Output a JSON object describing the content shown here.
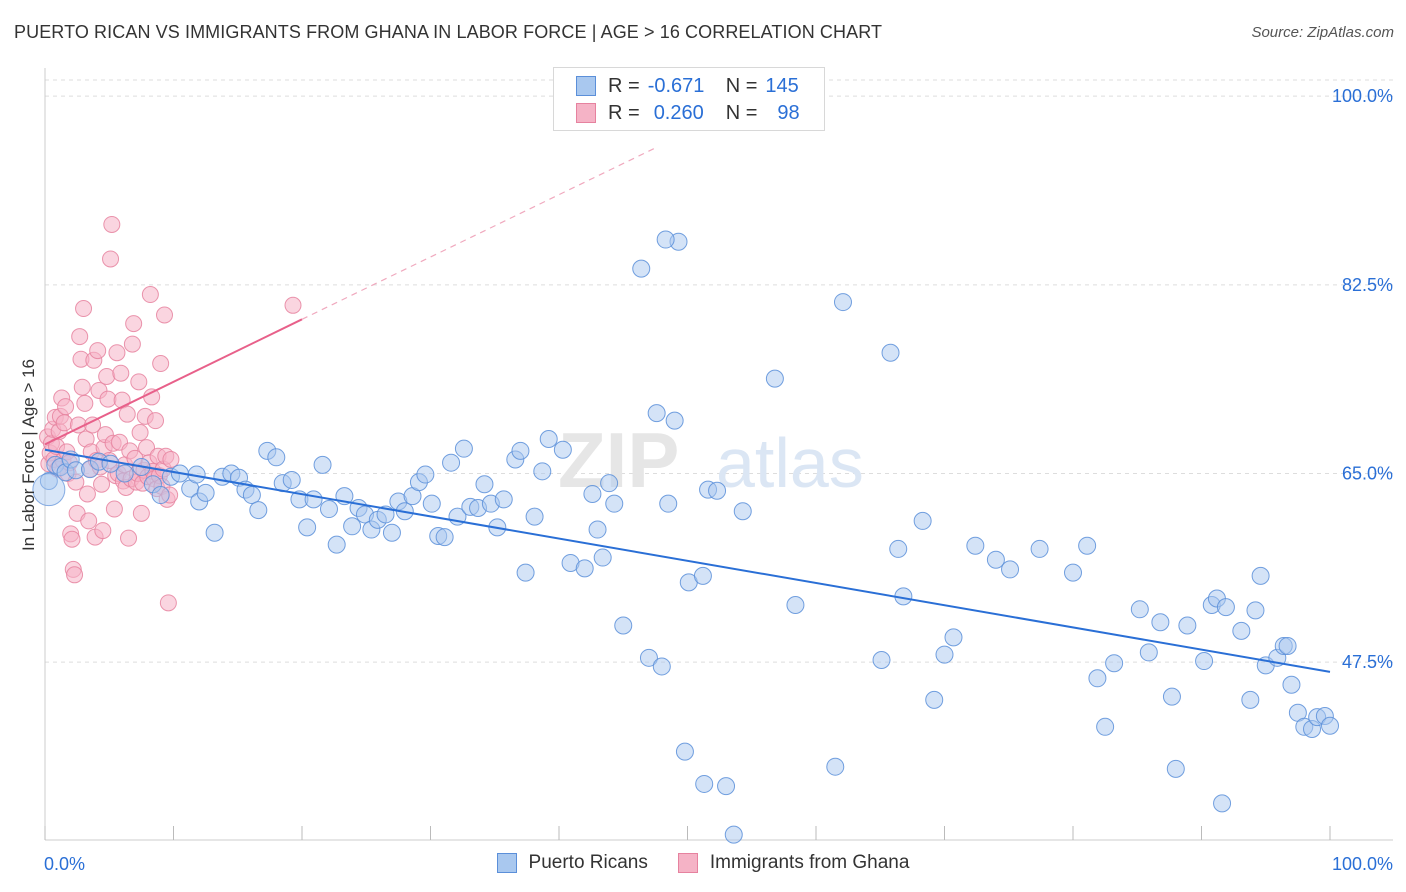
{
  "title": "PUERTO RICAN VS IMMIGRANTS FROM GHANA IN LABOR FORCE | AGE > 16 CORRELATION CHART",
  "source": "Source: ZipAtlas.com",
  "watermark": {
    "zip": "ZIP",
    "atlas": "atlas"
  },
  "legend": {
    "rows": [
      {
        "r_label": "R =",
        "r_value": "-0.671",
        "n_label": "N =",
        "n_value": "145"
      },
      {
        "r_label": "R =",
        "r_value": "0.260",
        "n_label": "N =",
        "n_value": "98"
      }
    ]
  },
  "chart_data": {
    "type": "scatter",
    "title": "PUERTO RICAN VS IMMIGRANTS FROM GHANA IN LABOR FORCE | AGE > 16 CORRELATION CHART",
    "xlabel": "",
    "ylabel": "In Labor Force | Age > 16",
    "xlim": [
      0,
      100
    ],
    "ylim": [
      31.0,
      101.5
    ],
    "x_tick_labels": [
      "0.0%",
      "100.0%"
    ],
    "y_ticks": [
      47.5,
      65.0,
      82.5,
      100.0
    ],
    "y_tick_labels": [
      "47.5%",
      "65.0%",
      "82.5%",
      "100.0%"
    ],
    "grid": true,
    "legend_position": "top-center",
    "colors": {
      "blue_fill": "#a9c8ef",
      "blue_stroke": "#5b8fd9",
      "blue_line": "#2a6fd6",
      "pink_fill": "#f5b3c6",
      "pink_stroke": "#e6829f",
      "pink_line": "#e8608a"
    },
    "series": [
      {
        "name": "Puerto Ricans",
        "color": "#5b8fd9",
        "trend": {
          "x0": 0,
          "y0": 67.2,
          "x1": 100,
          "y1": 46.6
        },
        "points": [
          [
            0.3,
            64.3
          ],
          [
            0.8,
            65.8
          ],
          [
            1.2,
            65.6
          ],
          [
            1.6,
            65.1
          ],
          [
            2.0,
            66.3
          ],
          [
            2.4,
            65.3
          ],
          [
            3.5,
            65.4
          ],
          [
            4.2,
            66.1
          ],
          [
            5.1,
            65.9
          ],
          [
            6.2,
            65.0
          ],
          [
            7.5,
            65.6
          ],
          [
            8.4,
            64.0
          ],
          [
            9.0,
            63.0
          ],
          [
            9.8,
            64.7
          ],
          [
            10.5,
            65.0
          ],
          [
            11.3,
            63.6
          ],
          [
            11.8,
            64.9
          ],
          [
            12.0,
            62.4
          ],
          [
            12.5,
            63.2
          ],
          [
            13.2,
            59.5
          ],
          [
            13.8,
            64.7
          ],
          [
            14.5,
            65.0
          ],
          [
            15.1,
            64.6
          ],
          [
            15.6,
            63.5
          ],
          [
            16.1,
            63.0
          ],
          [
            16.6,
            61.6
          ],
          [
            17.3,
            67.1
          ],
          [
            18.0,
            66.5
          ],
          [
            18.5,
            64.1
          ],
          [
            19.2,
            64.4
          ],
          [
            19.8,
            62.6
          ],
          [
            20.4,
            60.0
          ],
          [
            20.9,
            62.6
          ],
          [
            21.6,
            65.8
          ],
          [
            22.1,
            61.7
          ],
          [
            22.7,
            58.4
          ],
          [
            23.3,
            62.9
          ],
          [
            23.9,
            60.1
          ],
          [
            24.4,
            61.8
          ],
          [
            24.9,
            61.2
          ],
          [
            25.4,
            59.8
          ],
          [
            25.9,
            60.7
          ],
          [
            26.5,
            61.2
          ],
          [
            27.0,
            59.5
          ],
          [
            27.5,
            62.4
          ],
          [
            28.0,
            61.5
          ],
          [
            28.6,
            62.9
          ],
          [
            29.1,
            64.2
          ],
          [
            29.6,
            64.9
          ],
          [
            30.1,
            62.2
          ],
          [
            30.6,
            59.2
          ],
          [
            31.1,
            59.1
          ],
          [
            31.6,
            66.0
          ],
          [
            32.1,
            61.0
          ],
          [
            32.6,
            67.3
          ],
          [
            33.1,
            61.9
          ],
          [
            33.7,
            61.8
          ],
          [
            34.2,
            64.0
          ],
          [
            34.7,
            62.2
          ],
          [
            35.2,
            60.0
          ],
          [
            35.7,
            62.6
          ],
          [
            36.6,
            66.3
          ],
          [
            37.0,
            67.1
          ],
          [
            37.4,
            55.8
          ],
          [
            38.1,
            61.0
          ],
          [
            38.7,
            65.2
          ],
          [
            39.2,
            68.2
          ],
          [
            40.3,
            67.2
          ],
          [
            40.9,
            56.7
          ],
          [
            42.0,
            56.2
          ],
          [
            42.6,
            63.1
          ],
          [
            43.0,
            59.8
          ],
          [
            43.4,
            57.2
          ],
          [
            43.9,
            64.1
          ],
          [
            44.3,
            62.2
          ],
          [
            45.0,
            50.9
          ],
          [
            47.0,
            47.9
          ],
          [
            48.0,
            47.1
          ],
          [
            47.6,
            70.6
          ],
          [
            48.5,
            62.2
          ],
          [
            49.0,
            69.9
          ],
          [
            49.3,
            86.5
          ],
          [
            50.1,
            54.9
          ],
          [
            51.2,
            55.5
          ],
          [
            51.6,
            63.5
          ],
          [
            52.3,
            63.4
          ],
          [
            54.3,
            61.5
          ],
          [
            46.4,
            84.0
          ],
          [
            48.3,
            86.7
          ],
          [
            49.8,
            39.2
          ],
          [
            51.3,
            36.2
          ],
          [
            53.0,
            36.0
          ],
          [
            53.6,
            31.5
          ],
          [
            56.8,
            73.8
          ],
          [
            58.4,
            52.8
          ],
          [
            61.5,
            37.8
          ],
          [
            62.1,
            80.9
          ],
          [
            65.1,
            47.7
          ],
          [
            65.8,
            76.2
          ],
          [
            66.4,
            58.0
          ],
          [
            66.8,
            53.6
          ],
          [
            68.3,
            60.6
          ],
          [
            69.2,
            44.0
          ],
          [
            70.0,
            48.2
          ],
          [
            70.7,
            49.8
          ],
          [
            72.4,
            58.3
          ],
          [
            74.0,
            57.0
          ],
          [
            75.1,
            56.1
          ],
          [
            77.4,
            58.0
          ],
          [
            80.0,
            55.8
          ],
          [
            81.1,
            58.3
          ],
          [
            81.9,
            46.0
          ],
          [
            82.5,
            41.5
          ],
          [
            83.2,
            47.4
          ],
          [
            85.2,
            52.4
          ],
          [
            85.9,
            48.4
          ],
          [
            86.8,
            51.2
          ],
          [
            87.7,
            44.3
          ],
          [
            88.0,
            37.6
          ],
          [
            88.9,
            50.9
          ],
          [
            90.2,
            47.6
          ],
          [
            90.8,
            52.8
          ],
          [
            91.2,
            53.4
          ],
          [
            91.6,
            34.4
          ],
          [
            91.9,
            52.6
          ],
          [
            93.1,
            50.4
          ],
          [
            93.8,
            44.0
          ],
          [
            94.2,
            52.3
          ],
          [
            94.6,
            55.5
          ],
          [
            95.0,
            47.2
          ],
          [
            95.9,
            47.9
          ],
          [
            96.4,
            49.0
          ],
          [
            96.7,
            49.0
          ],
          [
            97.0,
            45.4
          ],
          [
            97.5,
            42.8
          ],
          [
            98.0,
            41.5
          ],
          [
            98.6,
            41.3
          ],
          [
            99.0,
            42.4
          ],
          [
            99.6,
            42.5
          ],
          [
            100.0,
            41.6
          ]
        ]
      },
      {
        "name": "Immigrants from Ghana",
        "color": "#e6829f",
        "trend": {
          "x0": 0,
          "y0": 67.7,
          "x1": 20.0,
          "y1": 79.3,
          "dashed_to": {
            "x": 47.5,
            "y": 95.2
          }
        },
        "points": [
          [
            0.2,
            68.4
          ],
          [
            0.3,
            65.9
          ],
          [
            0.4,
            66.9
          ],
          [
            0.5,
            67.8
          ],
          [
            0.6,
            69.1
          ],
          [
            0.7,
            66.3
          ],
          [
            0.8,
            70.2
          ],
          [
            0.9,
            67.5
          ],
          [
            1.0,
            65.4
          ],
          [
            1.1,
            68.9
          ],
          [
            1.2,
            70.3
          ],
          [
            1.3,
            72.0
          ],
          [
            1.4,
            66.2
          ],
          [
            1.5,
            69.7
          ],
          [
            1.6,
            71.2
          ],
          [
            1.7,
            67.0
          ],
          [
            1.8,
            65.0
          ],
          [
            1.9,
            66.0
          ],
          [
            2.0,
            59.4
          ],
          [
            2.1,
            58.9
          ],
          [
            2.2,
            56.1
          ],
          [
            2.3,
            55.6
          ],
          [
            2.4,
            64.2
          ],
          [
            2.5,
            61.3
          ],
          [
            2.6,
            69.5
          ],
          [
            2.7,
            77.7
          ],
          [
            2.8,
            75.6
          ],
          [
            2.9,
            73.0
          ],
          [
            3.0,
            80.3
          ],
          [
            3.1,
            71.5
          ],
          [
            3.2,
            68.2
          ],
          [
            3.3,
            63.1
          ],
          [
            3.4,
            60.6
          ],
          [
            3.5,
            65.4
          ],
          [
            3.6,
            67.0
          ],
          [
            3.7,
            69.5
          ],
          [
            3.8,
            75.5
          ],
          [
            3.9,
            59.1
          ],
          [
            4.0,
            66.2
          ],
          [
            4.1,
            76.4
          ],
          [
            4.2,
            72.7
          ],
          [
            4.3,
            65.6
          ],
          [
            4.4,
            64.0
          ],
          [
            4.5,
            59.7
          ],
          [
            4.6,
            67.4
          ],
          [
            4.7,
            68.6
          ],
          [
            4.8,
            74.0
          ],
          [
            4.9,
            71.9
          ],
          [
            5.0,
            66.2
          ],
          [
            5.1,
            84.9
          ],
          [
            5.2,
            88.1
          ],
          [
            5.3,
            67.8
          ],
          [
            5.4,
            61.7
          ],
          [
            5.5,
            64.8
          ],
          [
            5.6,
            76.2
          ],
          [
            5.7,
            65.0
          ],
          [
            5.8,
            67.9
          ],
          [
            5.9,
            74.3
          ],
          [
            6.0,
            71.8
          ],
          [
            6.1,
            64.3
          ],
          [
            6.2,
            65.8
          ],
          [
            6.3,
            63.7
          ],
          [
            6.4,
            70.5
          ],
          [
            6.5,
            59.0
          ],
          [
            6.6,
            67.1
          ],
          [
            6.7,
            64.5
          ],
          [
            6.8,
            77.0
          ],
          [
            6.9,
            78.9
          ],
          [
            7.0,
            66.4
          ],
          [
            7.1,
            64.2
          ],
          [
            7.2,
            65.0
          ],
          [
            7.3,
            73.5
          ],
          [
            7.4,
            68.8
          ],
          [
            7.5,
            61.3
          ],
          [
            7.6,
            64.1
          ],
          [
            7.7,
            65.3
          ],
          [
            7.8,
            70.3
          ],
          [
            7.9,
            67.4
          ],
          [
            8.0,
            64.7
          ],
          [
            8.1,
            66.0
          ],
          [
            8.2,
            81.6
          ],
          [
            8.3,
            72.1
          ],
          [
            8.4,
            65.2
          ],
          [
            8.5,
            64.5
          ],
          [
            8.6,
            69.9
          ],
          [
            8.7,
            63.6
          ],
          [
            8.8,
            66.6
          ],
          [
            8.9,
            64.8
          ],
          [
            9.0,
            75.2
          ],
          [
            9.1,
            63.8
          ],
          [
            9.2,
            65.4
          ],
          [
            9.3,
            79.7
          ],
          [
            9.4,
            66.6
          ],
          [
            9.5,
            62.6
          ],
          [
            9.6,
            53.0
          ],
          [
            9.7,
            63.0
          ],
          [
            9.8,
            66.3
          ],
          [
            19.3,
            80.6
          ]
        ]
      }
    ]
  },
  "bottom_legend": {
    "items": [
      "Puerto Ricans",
      "Immigrants from Ghana"
    ]
  }
}
